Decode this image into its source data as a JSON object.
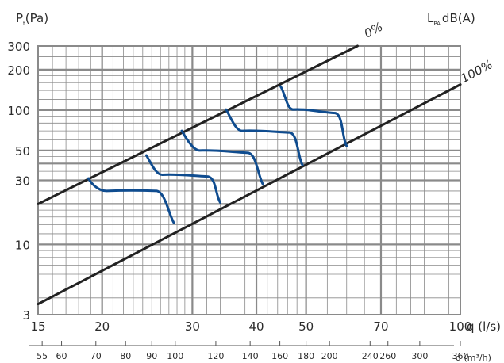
{
  "chart_data": {
    "type": "line",
    "y_axis_label": {
      "main": "P",
      "sub": "t",
      "unit": "(Pa)"
    },
    "right_label": {
      "main": "L",
      "sub": "PA",
      "unit": "dB(A)"
    },
    "x_axis_label": "q (l/s)",
    "x2_axis_label": "q (m³/h)",
    "x_scale": "log",
    "y_scale": "log",
    "xlim": [
      15,
      100
    ],
    "ylim": [
      3,
      300
    ],
    "x2lim": [
      54,
      360
    ],
    "x_ticks": [
      "15",
      "20",
      "30",
      "40",
      "50",
      "70",
      "100"
    ],
    "y_ticks": [
      "300",
      "200",
      "100",
      "50",
      "30",
      "10",
      "3"
    ],
    "x2_ticks": [
      "55",
      "60",
      "70",
      "80",
      "90",
      "100",
      "120",
      "140",
      "160",
      "180",
      "200",
      "240",
      "260",
      "300",
      "360"
    ],
    "lines": [
      {
        "name": "0%",
        "x": [
          15,
          63
        ],
        "y": [
          20,
          300
        ]
      },
      {
        "name": "100%",
        "x": [
          15,
          100
        ],
        "y": [
          3.6,
          155
        ]
      }
    ],
    "curves": [
      {
        "x": [
          18.8,
          20.4,
          25.6,
          27.6
        ],
        "y": [
          31,
          25,
          25,
          14.5
        ]
      },
      {
        "x": [
          24.4,
          26.2,
          32.2,
          34.0
        ],
        "y": [
          46,
          33,
          32,
          20.5
        ]
      },
      {
        "x": [
          28.6,
          31.0,
          38.6,
          41.2
        ],
        "y": [
          70,
          50,
          48,
          28
        ]
      },
      {
        "x": [
          34.9,
          37.5,
          46.5,
          49.2
        ],
        "y": [
          101,
          70,
          68,
          39
        ]
      },
      {
        "x": [
          44.6,
          47.2,
          57.0,
          60.0
        ],
        "y": [
          150,
          101,
          95,
          54
        ]
      }
    ],
    "colors": {
      "line": "#222222",
      "curve": "#0f4c8f",
      "grid": "#8a8a8a"
    },
    "grid": true
  }
}
